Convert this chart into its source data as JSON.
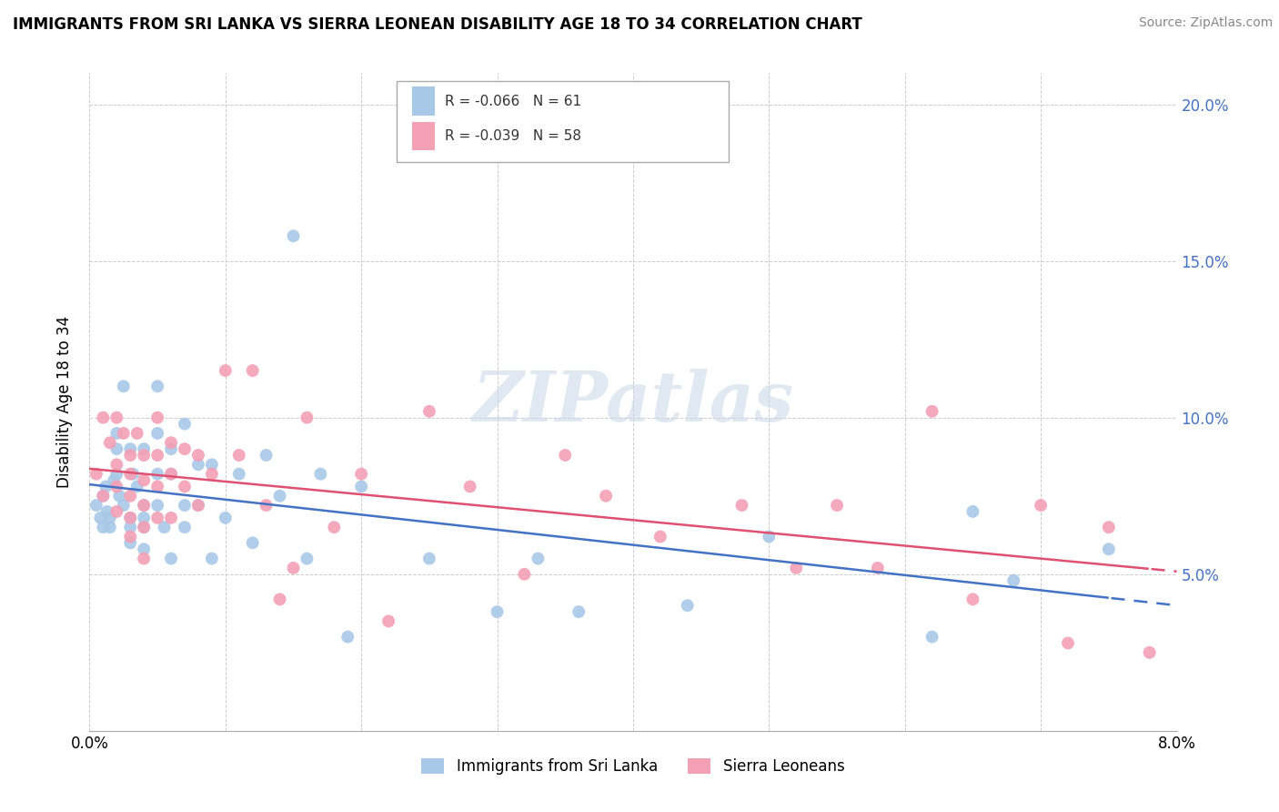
{
  "title": "IMMIGRANTS FROM SRI LANKA VS SIERRA LEONEAN DISABILITY AGE 18 TO 34 CORRELATION CHART",
  "source": "Source: ZipAtlas.com",
  "ylabel_label": "Disability Age 18 to 34",
  "x_min": 0.0,
  "x_max": 0.08,
  "y_min": 0.0,
  "y_max": 0.21,
  "sri_lanka_R": -0.066,
  "sri_lanka_N": 61,
  "sierra_leone_R": -0.039,
  "sierra_leone_N": 58,
  "sri_lanka_color": "#a8c8e8",
  "sierra_leone_color": "#f4a0b5",
  "sri_lanka_line_color": "#4472c4",
  "sierra_leone_line_color": "#e05070",
  "legend_label_1": "Immigrants from Sri Lanka",
  "legend_label_2": "Sierra Leoneans",
  "watermark": "ZIPatlas",
  "sri_lanka_x": [
    0.0005,
    0.0008,
    0.001,
    0.001,
    0.0012,
    0.0013,
    0.0015,
    0.0015,
    0.0018,
    0.002,
    0.002,
    0.002,
    0.0022,
    0.0025,
    0.0025,
    0.003,
    0.003,
    0.003,
    0.003,
    0.0032,
    0.0035,
    0.004,
    0.004,
    0.004,
    0.004,
    0.004,
    0.005,
    0.005,
    0.005,
    0.005,
    0.0055,
    0.006,
    0.006,
    0.006,
    0.007,
    0.007,
    0.007,
    0.008,
    0.008,
    0.009,
    0.009,
    0.01,
    0.011,
    0.012,
    0.013,
    0.014,
    0.015,
    0.016,
    0.017,
    0.019,
    0.02,
    0.025,
    0.03,
    0.033,
    0.036,
    0.044,
    0.05,
    0.062,
    0.065,
    0.068,
    0.075
  ],
  "sri_lanka_y": [
    0.072,
    0.068,
    0.075,
    0.065,
    0.078,
    0.07,
    0.068,
    0.065,
    0.08,
    0.095,
    0.09,
    0.082,
    0.075,
    0.11,
    0.072,
    0.068,
    0.065,
    0.06,
    0.09,
    0.082,
    0.078,
    0.072,
    0.068,
    0.065,
    0.058,
    0.09,
    0.11,
    0.095,
    0.082,
    0.072,
    0.065,
    0.055,
    0.09,
    0.082,
    0.072,
    0.065,
    0.098,
    0.085,
    0.072,
    0.055,
    0.085,
    0.068,
    0.082,
    0.06,
    0.088,
    0.075,
    0.158,
    0.055,
    0.082,
    0.03,
    0.078,
    0.055,
    0.038,
    0.055,
    0.038,
    0.04,
    0.062,
    0.03,
    0.07,
    0.048,
    0.058
  ],
  "sierra_leone_x": [
    0.0005,
    0.001,
    0.001,
    0.0015,
    0.002,
    0.002,
    0.002,
    0.002,
    0.0025,
    0.003,
    0.003,
    0.003,
    0.003,
    0.003,
    0.0035,
    0.004,
    0.004,
    0.004,
    0.004,
    0.004,
    0.005,
    0.005,
    0.005,
    0.005,
    0.006,
    0.006,
    0.006,
    0.007,
    0.007,
    0.008,
    0.008,
    0.009,
    0.01,
    0.011,
    0.012,
    0.013,
    0.014,
    0.015,
    0.016,
    0.018,
    0.02,
    0.022,
    0.025,
    0.028,
    0.032,
    0.035,
    0.038,
    0.042,
    0.048,
    0.052,
    0.055,
    0.058,
    0.062,
    0.065,
    0.07,
    0.072,
    0.075,
    0.078
  ],
  "sierra_leone_y": [
    0.082,
    0.1,
    0.075,
    0.092,
    0.085,
    0.1,
    0.078,
    0.07,
    0.095,
    0.088,
    0.082,
    0.075,
    0.068,
    0.062,
    0.095,
    0.088,
    0.08,
    0.072,
    0.065,
    0.055,
    0.1,
    0.088,
    0.078,
    0.068,
    0.092,
    0.082,
    0.068,
    0.09,
    0.078,
    0.088,
    0.072,
    0.082,
    0.115,
    0.088,
    0.115,
    0.072,
    0.042,
    0.052,
    0.1,
    0.065,
    0.082,
    0.035,
    0.102,
    0.078,
    0.05,
    0.088,
    0.075,
    0.062,
    0.072,
    0.052,
    0.072,
    0.052,
    0.102,
    0.042,
    0.072,
    0.028,
    0.065,
    0.025
  ]
}
